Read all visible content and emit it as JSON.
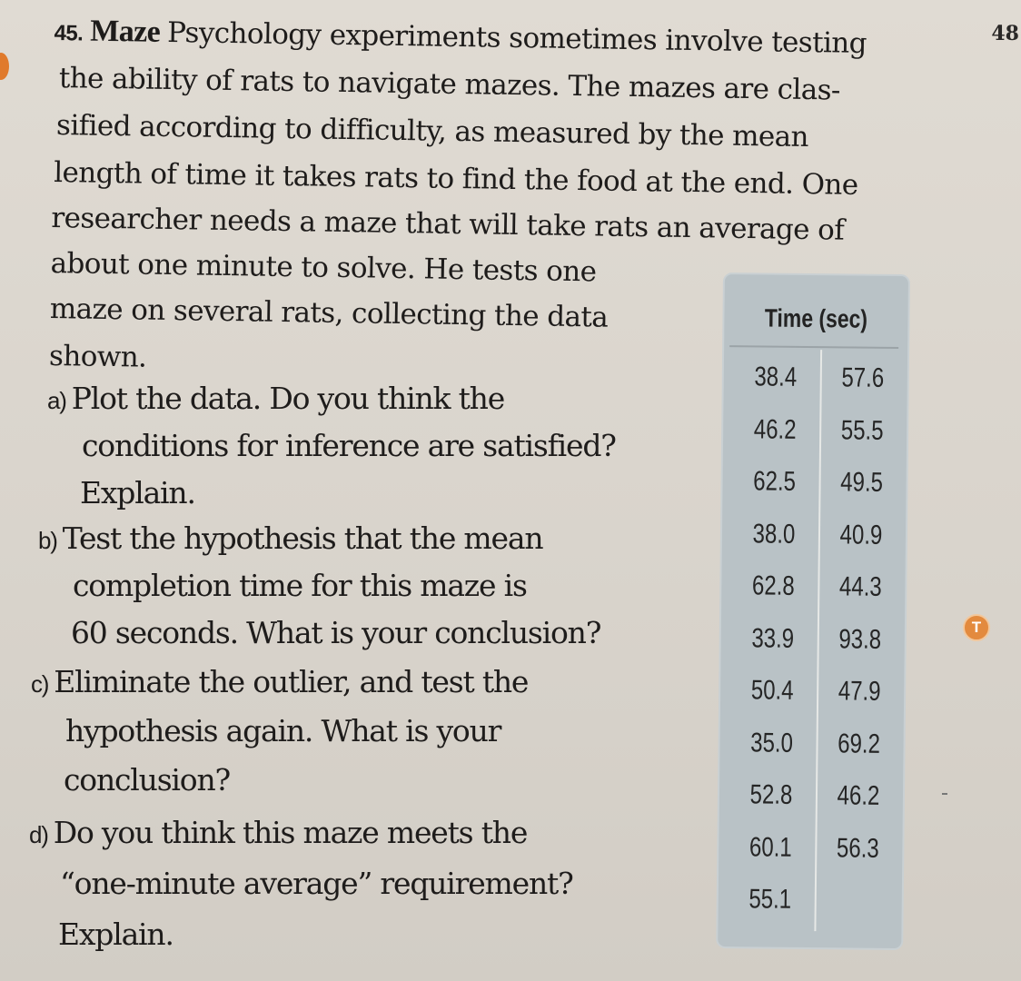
{
  "page": {
    "page_number": "48"
  },
  "problem": {
    "number": "45.",
    "title": "Maze",
    "intro_lines": [
      "Psychology experiments sometimes involve testing",
      "the ability of rats to  navigate mazes. The mazes are clas-",
      "sified according to difficulty, as measured by the mean",
      "length of time it takes rats to find the food at the end. One",
      "researcher needs a maze that will take rats an average of",
      "about one minute to solve. He tests one",
      "maze on several rats, collecting the data",
      "shown."
    ],
    "parts": [
      {
        "label": "a)",
        "lines": [
          "Plot the data. Do you think the",
          "conditions for inference are satisfied?",
          "Explain."
        ]
      },
      {
        "label": "b)",
        "lines": [
          "Test the hypothesis that the mean",
          "completion time for this maze is",
          "60 seconds. What is your conclusion?"
        ]
      },
      {
        "label": "c)",
        "lines": [
          "Eliminate the outlier, and test the",
          "hypothesis again. What is your",
          "conclusion?"
        ]
      },
      {
        "label": "d)",
        "lines": [
          "Do you think this maze meets the",
          "“one-minute average” requirement?",
          "Explain."
        ]
      }
    ]
  },
  "data_table": {
    "header": "Time (sec)",
    "rows": [
      [
        "38.4",
        "57.6"
      ],
      [
        "46.2",
        "55.5"
      ],
      [
        "62.5",
        "49.5"
      ],
      [
        "38.0",
        "40.9"
      ],
      [
        "62.8",
        "44.3"
      ],
      [
        "33.9",
        "93.8"
      ],
      [
        "50.4",
        "47.9"
      ],
      [
        "35.0",
        "69.2"
      ],
      [
        "52.8",
        "46.2"
      ],
      [
        "60.1",
        "56.3"
      ],
      [
        "55.1",
        ""
      ]
    ]
  },
  "margin_icon": {
    "icon": "technology-t-icon",
    "glyph": "T",
    "color": "#e38a3e"
  },
  "colors": {
    "paper": "#dad5cd",
    "table_background": "#b9c2c6",
    "marker": "#e07a2c"
  }
}
